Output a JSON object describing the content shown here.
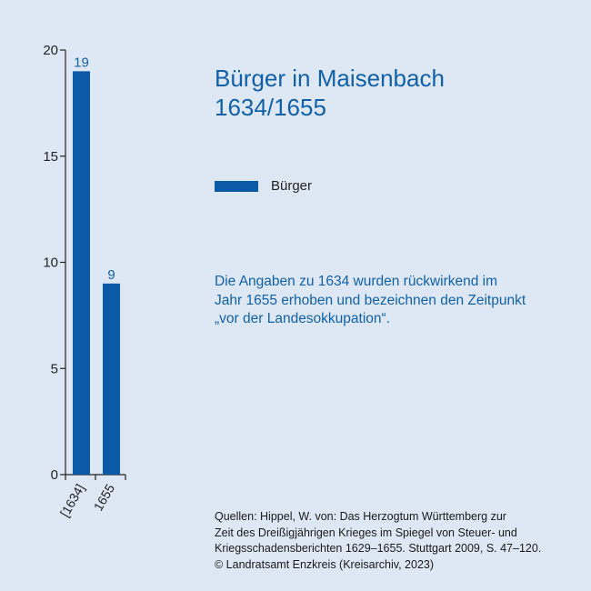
{
  "chart_data": {
    "type": "bar",
    "title": "Bürger in Maisenbach",
    "subtitle": "1634/1655",
    "categories": [
      "[1634]",
      "1655"
    ],
    "series": [
      {
        "name": "Bürger",
        "values": [
          19,
          9
        ],
        "color": "#0b5aa8"
      }
    ],
    "data_labels": [
      "19",
      "9"
    ],
    "ylim": [
      0,
      20
    ],
    "yticks": [
      0,
      5,
      10,
      15,
      20
    ],
    "grid": false,
    "legend": "right"
  },
  "note": {
    "lines": [
      "Die Angaben zu 1634 wurden rückwirkend im",
      "Jahr 1655 erhoben und bezeichnen den Zeitpunkt",
      "„vor der Landesokkupation“."
    ]
  },
  "sources": {
    "lines": [
      "Quellen: Hippel, W. von: Das Herzogtum Württemberg zur",
      "Zeit des Dreißigjährigen Krieges im Spiegel von Steuer- und",
      "Kriegsschadensberichten 1629–1655. Stuttgart 2009, S. 47–120.",
      "© Landratsamt Enzkreis (Kreisarchiv, 2023)"
    ]
  },
  "colors": {
    "background": "#dde8f4",
    "accent": "#1160a8",
    "bar": "#0b5aa8"
  }
}
